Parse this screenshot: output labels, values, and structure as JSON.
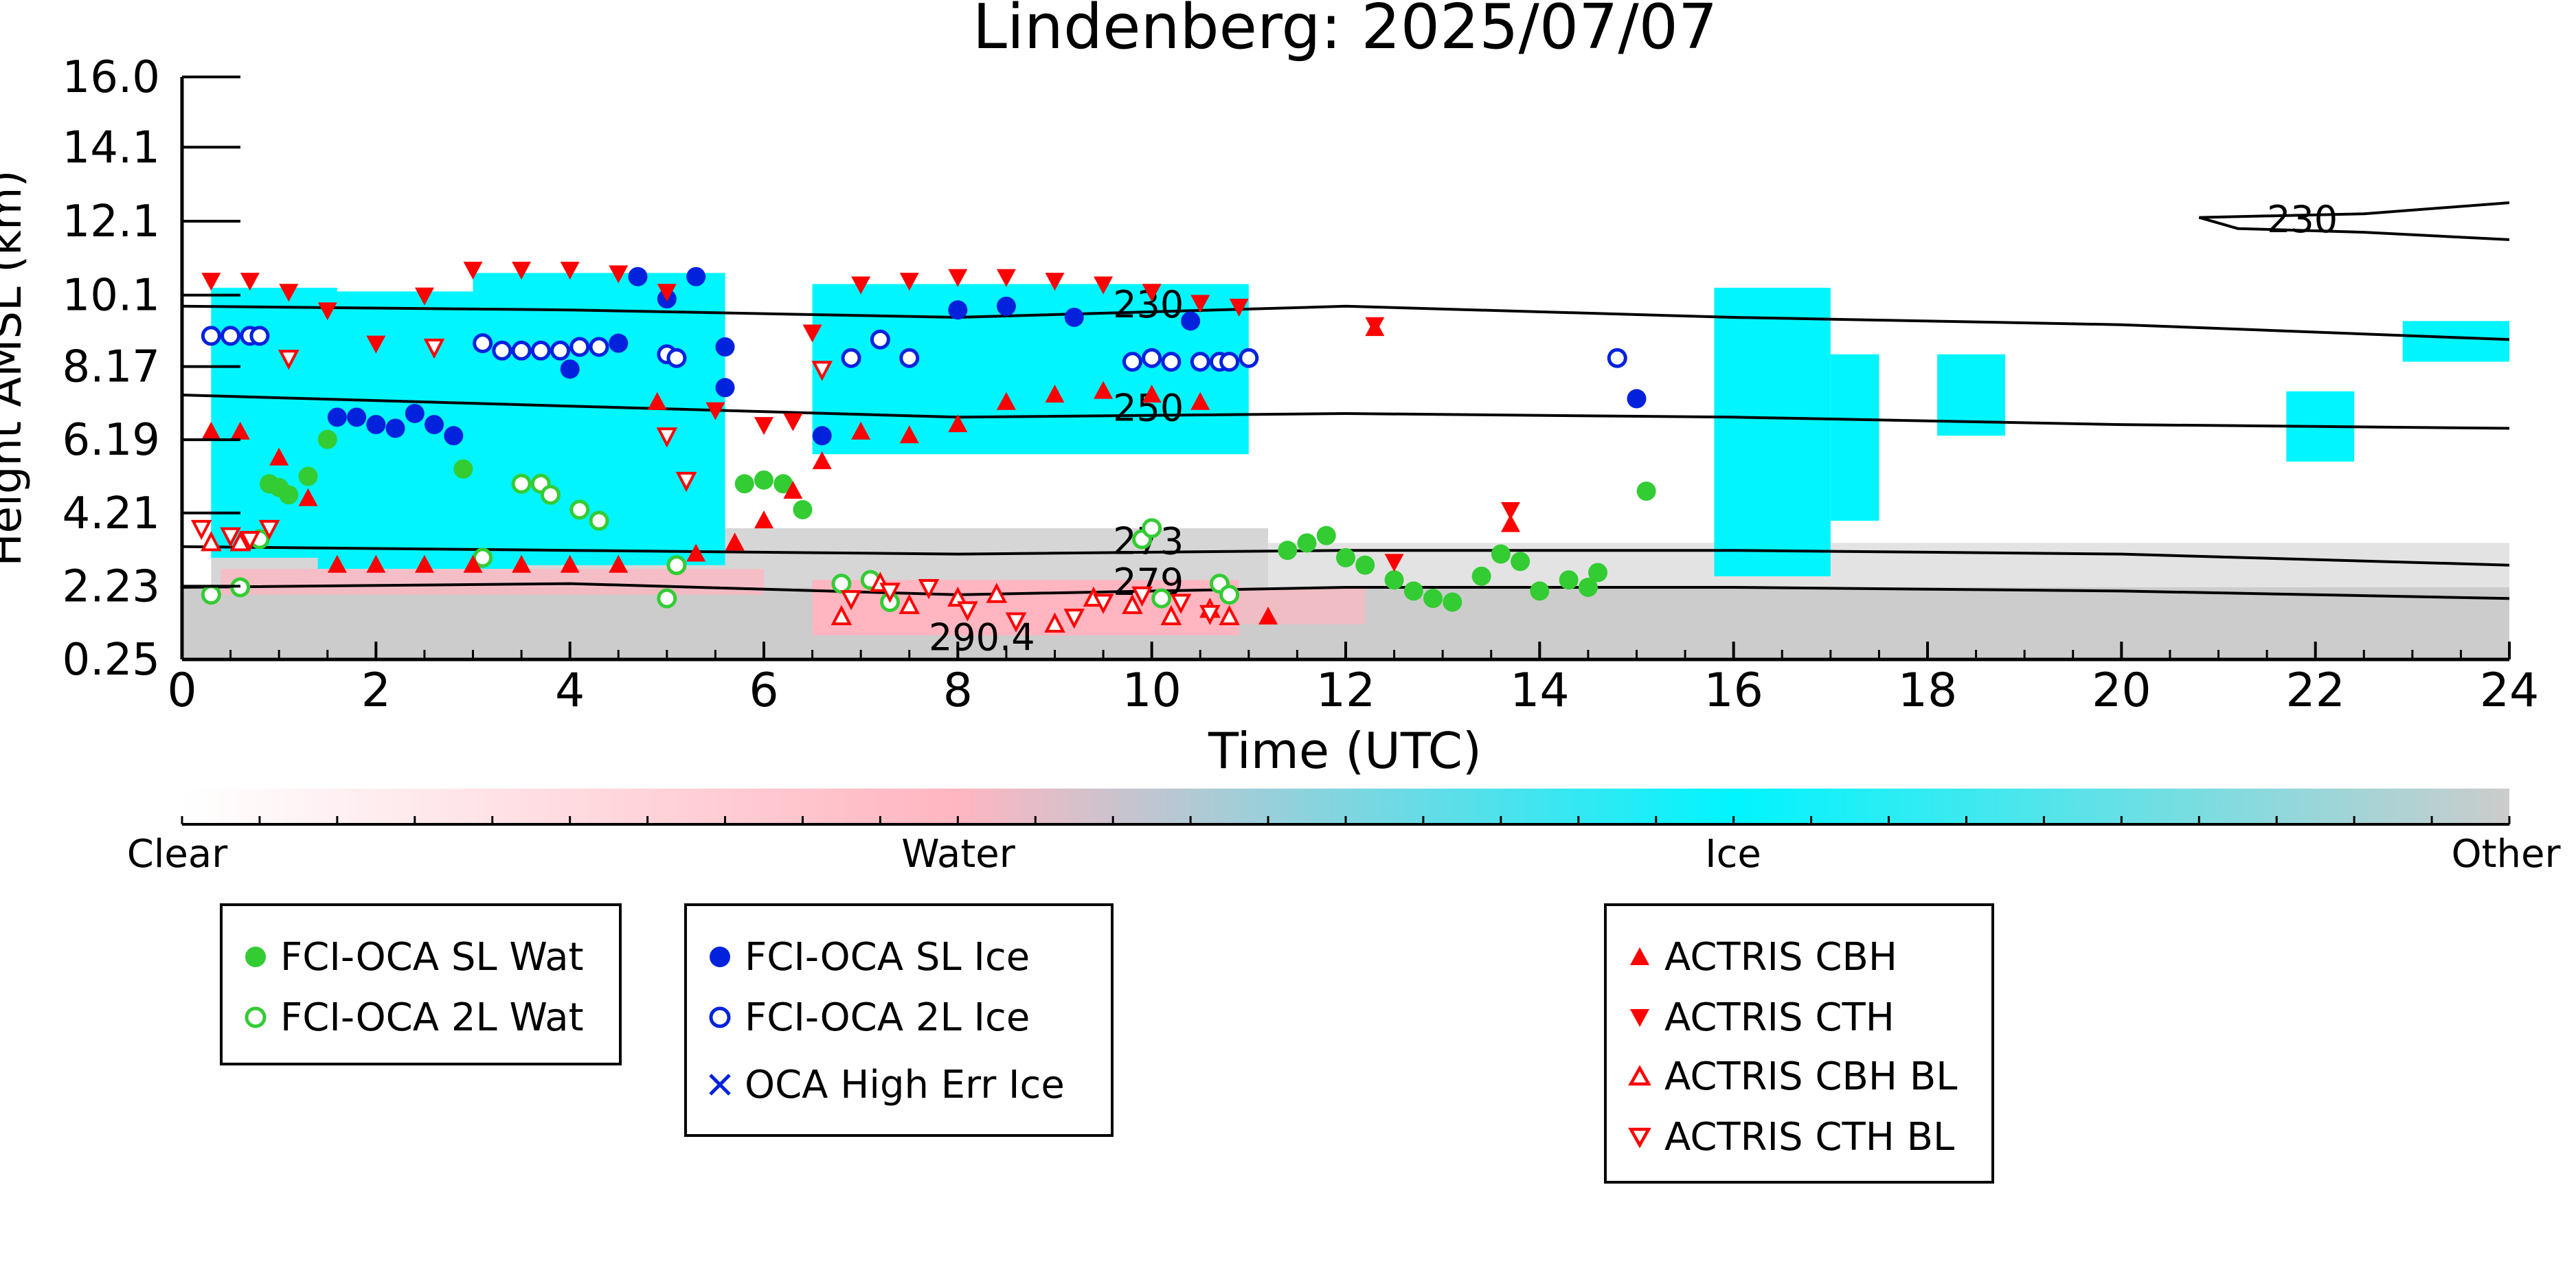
{
  "chart_data": {
    "type": "scatter",
    "title": "Lindenberg: 2025/07/07",
    "xlabel": "Time (UTC)",
    "ylabel": "Height AMSL (km)",
    "xlim": [
      0,
      24
    ],
    "ylim": [
      0.25,
      16.0
    ],
    "x_ticks": [
      0,
      2,
      4,
      6,
      8,
      10,
      12,
      14,
      16,
      18,
      20,
      22,
      24
    ],
    "y_ticks": [
      "0.25",
      "2.23",
      "4.21",
      "6.19",
      "8.17",
      "10.1",
      "12.1",
      "14.1",
      "16.0"
    ],
    "background_classes": {
      "labels": [
        "Clear",
        "Water",
        "Ice",
        "Other"
      ],
      "colors": {
        "clear": "#ffffff",
        "water": "#ffb6c1",
        "ice": "#00f5ff",
        "other": "#cccccc"
      },
      "ice_regions": [
        {
          "x": [
            0.3,
            1.6
          ],
          "y": [
            3.0,
            10.3
          ]
        },
        {
          "x": [
            1.4,
            3.5
          ],
          "y": [
            2.7,
            10.2
          ]
        },
        {
          "x": [
            3.0,
            5.6
          ],
          "y": [
            2.8,
            10.7
          ]
        },
        {
          "x": [
            6.5,
            11.0
          ],
          "y": [
            5.8,
            10.4
          ]
        },
        {
          "x": [
            15.8,
            17.0
          ],
          "y": [
            2.5,
            10.3
          ]
        },
        {
          "x": [
            17.0,
            17.5
          ],
          "y": [
            4.0,
            8.5
          ]
        },
        {
          "x": [
            18.1,
            18.8
          ],
          "y": [
            6.3,
            8.5
          ]
        },
        {
          "x": [
            21.7,
            22.4
          ],
          "y": [
            5.6,
            7.5
          ]
        },
        {
          "x": [
            22.9,
            24.0
          ],
          "y": [
            8.3,
            9.4
          ]
        }
      ]
    },
    "contours": [
      {
        "label": "230",
        "points": [
          [
            0,
            9.8
          ],
          [
            4,
            9.7
          ],
          [
            8,
            9.5
          ],
          [
            12,
            9.8
          ],
          [
            16,
            9.5
          ],
          [
            20,
            9.3
          ],
          [
            24,
            8.9
          ]
        ]
      },
      {
        "label": "250",
        "points": [
          [
            0,
            7.4
          ],
          [
            4,
            7.1
          ],
          [
            8,
            6.8
          ],
          [
            12,
            6.9
          ],
          [
            16,
            6.8
          ],
          [
            20,
            6.6
          ],
          [
            24,
            6.5
          ]
        ]
      },
      {
        "label": "273",
        "points": [
          [
            0,
            3.3
          ],
          [
            4,
            3.2
          ],
          [
            8,
            3.1
          ],
          [
            12,
            3.2
          ],
          [
            16,
            3.2
          ],
          [
            20,
            3.1
          ],
          [
            24,
            2.8
          ]
        ]
      },
      {
        "label": "279",
        "points": [
          [
            0,
            2.2
          ],
          [
            4,
            2.3
          ],
          [
            8,
            2.0
          ],
          [
            12,
            2.2
          ],
          [
            16,
            2.2
          ],
          [
            20,
            2.1
          ],
          [
            24,
            1.9
          ]
        ]
      },
      {
        "label": "230",
        "points": [
          [
            20.8,
            12.2
          ],
          [
            21.2,
            11.9
          ],
          [
            22.5,
            11.8
          ],
          [
            24,
            11.6
          ]
        ]
      },
      {
        "label": "",
        "points": [
          [
            20.8,
            12.2
          ],
          [
            22.5,
            12.3
          ],
          [
            24,
            12.6
          ]
        ]
      }
    ],
    "contour_labels": [
      {
        "text": "230",
        "x": 9.6,
        "y": 9.5
      },
      {
        "text": "250",
        "x": 9.6,
        "y": 6.7
      },
      {
        "text": "273",
        "x": 9.6,
        "y": 3.1
      },
      {
        "text": "279",
        "x": 9.6,
        "y": 2.0
      },
      {
        "text": "290.4",
        "x": 7.7,
        "y": 0.5
      },
      {
        "text": "230",
        "x": 21.5,
        "y": 11.8
      }
    ],
    "series": [
      {
        "name": "FCI-OCA SL Wat",
        "marker": "filled-circle",
        "color": "#33cc33",
        "points": [
          [
            0.9,
            5.0
          ],
          [
            1.0,
            4.9
          ],
          [
            1.1,
            4.7
          ],
          [
            1.3,
            5.2
          ],
          [
            1.5,
            6.2
          ],
          [
            2.9,
            5.4
          ],
          [
            5.8,
            5.0
          ],
          [
            6.0,
            5.1
          ],
          [
            6.2,
            5.0
          ],
          [
            6.4,
            4.3
          ],
          [
            11.4,
            3.2
          ],
          [
            11.6,
            3.4
          ],
          [
            11.8,
            3.6
          ],
          [
            12.0,
            3.0
          ],
          [
            12.2,
            2.8
          ],
          [
            12.5,
            2.4
          ],
          [
            12.7,
            2.1
          ],
          [
            12.9,
            1.9
          ],
          [
            13.1,
            1.8
          ],
          [
            13.4,
            2.5
          ],
          [
            13.6,
            3.1
          ],
          [
            13.8,
            2.9
          ],
          [
            14.0,
            2.1
          ],
          [
            14.3,
            2.4
          ],
          [
            14.5,
            2.2
          ],
          [
            14.6,
            2.6
          ],
          [
            15.1,
            4.8
          ]
        ]
      },
      {
        "name": "FCI-OCA 2L Wat",
        "marker": "open-circle",
        "color": "#33cc33",
        "points": [
          [
            0.3,
            2.0
          ],
          [
            0.6,
            2.2
          ],
          [
            0.8,
            3.5
          ],
          [
            3.1,
            3.0
          ],
          [
            3.5,
            5.0
          ],
          [
            3.7,
            5.0
          ],
          [
            3.8,
            4.7
          ],
          [
            4.1,
            4.3
          ],
          [
            4.3,
            4.0
          ],
          [
            5.0,
            1.9
          ],
          [
            5.1,
            2.8
          ],
          [
            6.8,
            2.3
          ],
          [
            7.1,
            2.4
          ],
          [
            7.3,
            1.8
          ],
          [
            9.9,
            3.5
          ],
          [
            10.0,
            3.8
          ],
          [
            10.1,
            1.9
          ],
          [
            10.7,
            2.3
          ],
          [
            10.8,
            2.0
          ]
        ]
      },
      {
        "name": "FCI-OCA SL Ice",
        "marker": "filled-circle",
        "color": "#0022dd",
        "points": [
          [
            1.6,
            6.8
          ],
          [
            1.8,
            6.8
          ],
          [
            2.0,
            6.6
          ],
          [
            2.2,
            6.5
          ],
          [
            2.4,
            6.9
          ],
          [
            2.6,
            6.6
          ],
          [
            2.8,
            6.3
          ],
          [
            4.0,
            8.1
          ],
          [
            4.5,
            8.8
          ],
          [
            4.7,
            10.6
          ],
          [
            5.0,
            10.0
          ],
          [
            5.3,
            10.6
          ],
          [
            5.6,
            7.6
          ],
          [
            5.6,
            8.7
          ],
          [
            6.6,
            6.3
          ],
          [
            8.0,
            9.7
          ],
          [
            8.5,
            9.8
          ],
          [
            9.2,
            9.5
          ],
          [
            10.4,
            9.4
          ],
          [
            15.0,
            7.3
          ]
        ]
      },
      {
        "name": "FCI-OCA 2L Ice",
        "marker": "open-circle",
        "color": "#0022dd",
        "points": [
          [
            0.3,
            9.0
          ],
          [
            0.5,
            9.0
          ],
          [
            0.7,
            9.0
          ],
          [
            0.8,
            9.0
          ],
          [
            3.1,
            8.8
          ],
          [
            3.3,
            8.6
          ],
          [
            3.5,
            8.6
          ],
          [
            3.7,
            8.6
          ],
          [
            3.9,
            8.6
          ],
          [
            4.1,
            8.7
          ],
          [
            4.3,
            8.7
          ],
          [
            5.0,
            8.5
          ],
          [
            5.1,
            8.4
          ],
          [
            6.9,
            8.4
          ],
          [
            7.2,
            8.9
          ],
          [
            7.5,
            8.4
          ],
          [
            9.8,
            8.3
          ],
          [
            10.0,
            8.4
          ],
          [
            10.2,
            8.3
          ],
          [
            10.5,
            8.3
          ],
          [
            10.7,
            8.3
          ],
          [
            10.8,
            8.3
          ],
          [
            11.0,
            8.4
          ],
          [
            14.8,
            8.4
          ]
        ]
      },
      {
        "name": "OCA High Err Ice",
        "marker": "x",
        "color": "#0022dd",
        "points": []
      },
      {
        "name": "ACTRIS CBH",
        "marker": "filled-triangle-up",
        "color": "#ff0000",
        "points": [
          [
            0.3,
            6.4
          ],
          [
            0.6,
            6.4
          ],
          [
            1.0,
            5.7
          ],
          [
            1.3,
            4.6
          ],
          [
            1.6,
            2.8
          ],
          [
            2.0,
            2.8
          ],
          [
            2.5,
            2.8
          ],
          [
            3.0,
            2.8
          ],
          [
            3.5,
            2.8
          ],
          [
            4.0,
            2.8
          ],
          [
            4.5,
            2.8
          ],
          [
            4.9,
            7.2
          ],
          [
            5.3,
            3.1
          ],
          [
            5.7,
            3.4
          ],
          [
            6.0,
            4.0
          ],
          [
            6.3,
            4.8
          ],
          [
            6.6,
            5.6
          ],
          [
            7.0,
            6.4
          ],
          [
            7.5,
            6.3
          ],
          [
            8.0,
            6.6
          ],
          [
            8.5,
            7.2
          ],
          [
            9.0,
            7.4
          ],
          [
            9.5,
            7.5
          ],
          [
            10.0,
            7.4
          ],
          [
            10.5,
            7.2
          ],
          [
            11.2,
            1.4
          ],
          [
            12.3,
            9.2
          ],
          [
            13.7,
            3.9
          ]
        ]
      },
      {
        "name": "ACTRIS CTH",
        "marker": "filled-triangle-down",
        "color": "#ff0000",
        "points": [
          [
            0.3,
            10.5
          ],
          [
            0.7,
            10.5
          ],
          [
            1.1,
            10.2
          ],
          [
            1.5,
            9.7
          ],
          [
            2.0,
            8.8
          ],
          [
            2.5,
            10.1
          ],
          [
            3.0,
            10.8
          ],
          [
            3.5,
            10.8
          ],
          [
            4.0,
            10.8
          ],
          [
            4.5,
            10.7
          ],
          [
            5.0,
            10.2
          ],
          [
            5.5,
            7.0
          ],
          [
            6.0,
            6.6
          ],
          [
            6.3,
            6.7
          ],
          [
            6.5,
            9.1
          ],
          [
            7.0,
            10.4
          ],
          [
            7.5,
            10.5
          ],
          [
            8.0,
            10.6
          ],
          [
            8.5,
            10.6
          ],
          [
            9.0,
            10.5
          ],
          [
            9.5,
            10.4
          ],
          [
            10.0,
            10.2
          ],
          [
            10.5,
            9.9
          ],
          [
            10.9,
            9.8
          ],
          [
            12.3,
            9.3
          ],
          [
            13.7,
            4.3
          ],
          [
            12.5,
            2.9
          ]
        ]
      },
      {
        "name": "ACTRIS CBH BL",
        "marker": "open-triangle-up",
        "color": "#ff0000",
        "points": [
          [
            0.3,
            3.4
          ],
          [
            0.6,
            3.4
          ],
          [
            6.8,
            1.4
          ],
          [
            7.2,
            2.3
          ],
          [
            7.5,
            1.7
          ],
          [
            8.0,
            1.9
          ],
          [
            8.4,
            2.0
          ],
          [
            9.0,
            1.2
          ],
          [
            9.4,
            1.9
          ],
          [
            9.8,
            1.7
          ],
          [
            10.2,
            1.4
          ],
          [
            10.6,
            1.6
          ],
          [
            10.8,
            1.4
          ]
        ]
      },
      {
        "name": "ACTRIS CTH BL",
        "marker": "open-triangle-down",
        "color": "#ff0000",
        "points": [
          [
            0.2,
            3.8
          ],
          [
            0.5,
            3.6
          ],
          [
            0.7,
            3.5
          ],
          [
            0.9,
            3.8
          ],
          [
            1.1,
            8.4
          ],
          [
            2.6,
            8.7
          ],
          [
            5.0,
            6.3
          ],
          [
            5.2,
            5.1
          ],
          [
            6.6,
            8.1
          ],
          [
            6.9,
            1.9
          ],
          [
            7.3,
            2.1
          ],
          [
            7.7,
            2.2
          ],
          [
            8.1,
            1.6
          ],
          [
            8.6,
            1.3
          ],
          [
            9.2,
            1.4
          ],
          [
            9.5,
            1.8
          ],
          [
            9.9,
            2.0
          ],
          [
            10.3,
            1.8
          ],
          [
            10.6,
            1.5
          ]
        ]
      }
    ]
  },
  "legend": {
    "water": [
      {
        "label": "FCI-OCA SL Wat",
        "marker": "filled-circle",
        "color": "#33cc33"
      },
      {
        "label": "FCI-OCA 2L Wat",
        "marker": "open-circle",
        "color": "#33cc33"
      }
    ],
    "ice": [
      {
        "label": "FCI-OCA SL Ice",
        "marker": "filled-circle",
        "color": "#0022dd"
      },
      {
        "label": "FCI-OCA 2L Ice",
        "marker": "open-circle",
        "color": "#0022dd"
      },
      {
        "label": "OCA High Err Ice",
        "marker": "x",
        "color": "#0022dd"
      }
    ],
    "actris": [
      {
        "label": "ACTRIS CBH",
        "marker": "filled-triangle-up",
        "color": "#ff0000"
      },
      {
        "label": "ACTRIS CTH",
        "marker": "filled-triangle-down",
        "color": "#ff0000"
      },
      {
        "label": "ACTRIS CBH BL",
        "marker": "open-triangle-up",
        "color": "#ff0000"
      },
      {
        "label": "ACTRIS CTH BL",
        "marker": "open-triangle-down",
        "color": "#ff0000"
      }
    ]
  }
}
